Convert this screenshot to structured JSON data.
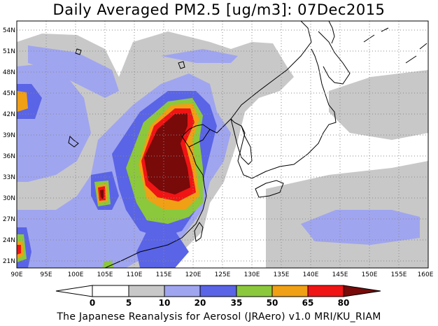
{
  "title": "Daily Averaged PM2.5 [ug/m3]: 07Dec2015",
  "credit": "The Japanese Reanalysis for Aerosol (JRAero) v1.0 MRI/KU_RIAM",
  "map": {
    "lon_range": [
      90,
      160
    ],
    "lat_range": [
      20,
      55
    ],
    "lon_ticks": [
      "90E",
      "95E",
      "100E",
      "105E",
      "110E",
      "115E",
      "120E",
      "125E",
      "130E",
      "135E",
      "140E",
      "145E",
      "150E",
      "155E",
      "160E"
    ],
    "lat_ticks": [
      "21N",
      "24N",
      "27N",
      "30N",
      "33N",
      "36N",
      "39N",
      "42N",
      "45N",
      "48N",
      "51N",
      "54N"
    ],
    "grid": "dotted"
  },
  "colorbar": {
    "levels": [
      "0",
      "5",
      "10",
      "20",
      "35",
      "50",
      "65",
      "80"
    ],
    "colors": {
      "below": "#ffffff",
      "c0_5": "#ffffff",
      "c5_10": "#c8c8c8",
      "c10_20": "#a0a5f0",
      "c20_35": "#5a64e6",
      "c35_50": "#8cc83c",
      "c50_65": "#f0a014",
      "c65_80": "#f01414",
      "above": "#780a0a"
    }
  }
}
